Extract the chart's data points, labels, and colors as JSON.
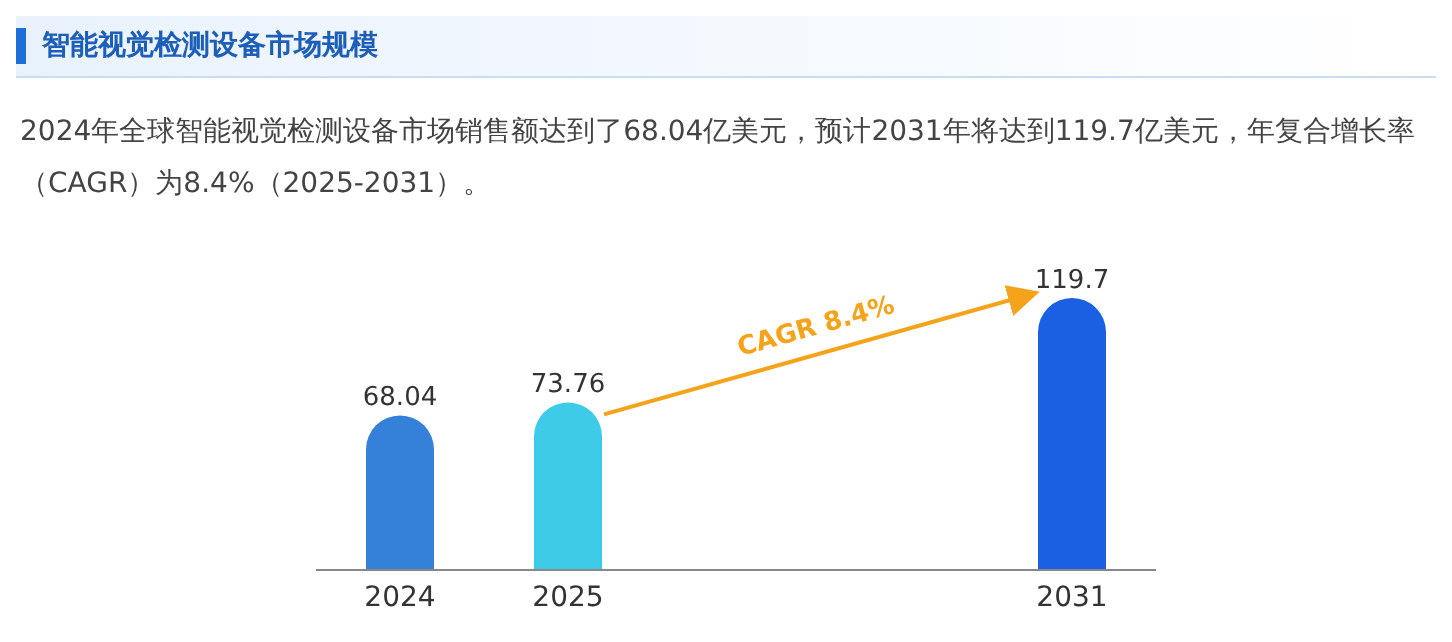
{
  "chart_data": {
    "type": "bar",
    "title": "智能视觉检测设备市场规模",
    "subtitle": "2024年全球智能视觉检测设备市场销售额达到了68.04亿美元，预计2031年将达到119.7亿美元，年复合增长率（CAGR）为8.4%（2025-2031）。",
    "categories": [
      "2024",
      "2025",
      null,
      null,
      "2031"
    ],
    "values": [
      68.04,
      73.76,
      null,
      null,
      119.7
    ],
    "colors": [
      "#3580d8",
      "#3ecbe8",
      null,
      null,
      "#1b5fe2"
    ],
    "data_labels": true,
    "annotations": [
      "CAGR 8.4%"
    ]
  }
}
